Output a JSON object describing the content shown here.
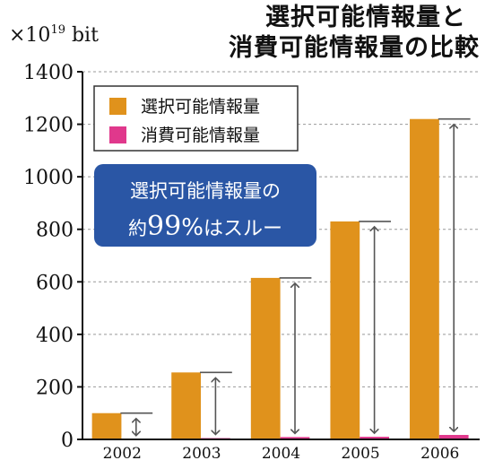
{
  "chart_data": {
    "type": "bar",
    "title_line1": "選択可能情報量と",
    "title_line2": "消費可能情報量の比較",
    "unit_label": "×10",
    "unit_exponent": "19",
    "unit_suffix": " bit",
    "categories": [
      "2002",
      "2003",
      "2004",
      "2005",
      "2006"
    ],
    "series": [
      {
        "name": "選択可能情報量",
        "values": [
          100,
          255,
          615,
          830,
          1220
        ],
        "color": "#e0921c"
      },
      {
        "name": "消費可能情報量",
        "values": [
          1,
          5,
          9,
          10,
          17
        ],
        "color": "#e0388c"
      }
    ],
    "ylim": [
      0,
      1400
    ],
    "yticks": [
      0,
      200,
      400,
      600,
      800,
      1000,
      1200,
      1400
    ],
    "grid": "dashed",
    "legend": "top-left",
    "annotation_line1": "選択可能情報量の",
    "annotation_prefix": "約",
    "annotation_number": "99",
    "annotation_percent": "%",
    "annotation_suffix": "はスルー",
    "annotation_color": "#2a56a5"
  }
}
